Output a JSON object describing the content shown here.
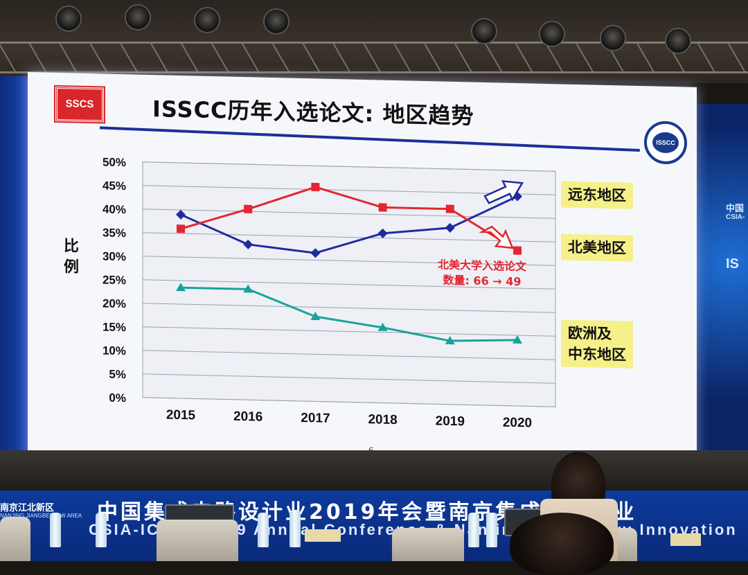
{
  "slide": {
    "title": "ISSCC历年入选论文: 地区趋势",
    "page_number": "6",
    "logo_left": "SSCS",
    "logo_right": "ISSCC"
  },
  "annotation": {
    "line1": "北美大学入选论文",
    "line2": "数量: 66 → 49"
  },
  "banner": {
    "cn": "中国集成电路设计业2019年会暨南京集成电路产业",
    "en": "CSIA-ICCAD 2019 Annual Conference & Nanjing IC Industry Innovation",
    "left_cn": "南京江北新区",
    "left_en": "NANJING JIANGBEI NEW AREA"
  },
  "side_screen": {
    "cn": "中国",
    "en": "CSIA-",
    "abbr": "IS"
  },
  "colors": {
    "far_east": "#1f2c9c",
    "north_america": "#e3262f",
    "europe_me": "#19a29a",
    "legend_bg": "#f5f08a",
    "title_rule": "#1e2f9a"
  },
  "chart_data": {
    "type": "line",
    "title": "ISSCC历年入选论文: 地区趋势",
    "ylabel": "比例",
    "xlabel": "",
    "x": [
      "2015",
      "2016",
      "2017",
      "2018",
      "2019",
      "2020"
    ],
    "ylim": [
      0,
      50
    ],
    "yticks": [
      "0%",
      "5%",
      "10%",
      "15%",
      "20%",
      "25%",
      "30%",
      "35%",
      "40%",
      "45%",
      "50%"
    ],
    "grid": true,
    "legend_position": "right",
    "series": [
      {
        "name": "远东地区",
        "marker": "diamond",
        "values": [
          39,
          33,
          31.5,
          36,
          37.5,
          44.5
        ]
      },
      {
        "name": "北美地区",
        "marker": "square",
        "values": [
          36,
          40.5,
          45.5,
          41.5,
          41.5,
          33
        ]
      },
      {
        "name": "欧洲及中东地区",
        "marker": "triangle",
        "values": [
          23.5,
          23.5,
          18,
          16,
          13.5,
          14
        ]
      }
    ],
    "legend": [
      {
        "lines": [
          "远东地区"
        ]
      },
      {
        "lines": [
          "北美地区"
        ]
      },
      {
        "lines": [
          "欧洲及",
          "中东地区"
        ]
      }
    ]
  }
}
